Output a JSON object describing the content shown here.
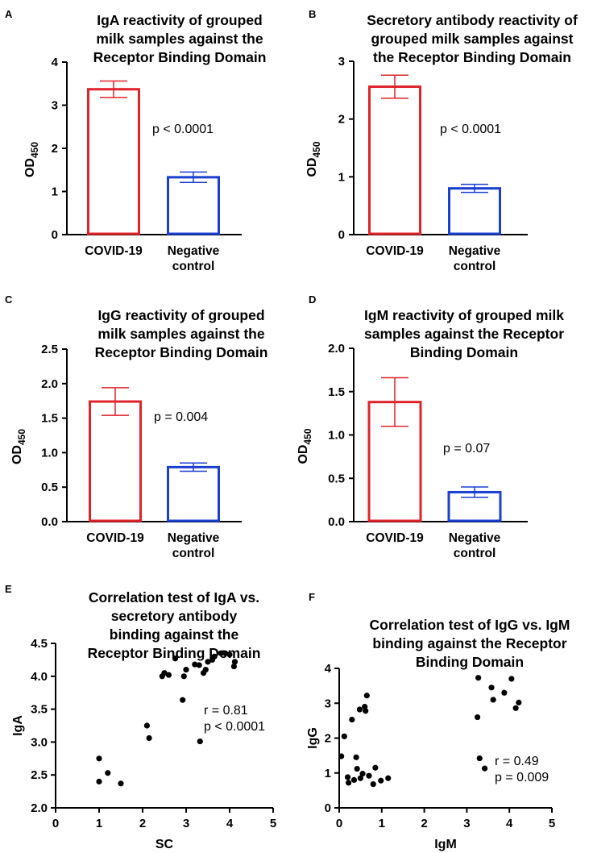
{
  "chart_data": [
    {
      "id": "A",
      "type": "bar",
      "panel_label": "A",
      "title": [
        "IgA reactivity of grouped",
        "milk samples against the",
        "Receptor Binding Domain"
      ],
      "ylabel": "OD",
      "ylabel_sub": "450",
      "ylim": [
        0,
        4
      ],
      "yticks": [
        "0",
        "1",
        "2",
        "3",
        "4"
      ],
      "categories": [
        [
          "COVID-19"
        ],
        [
          "Negative",
          "control"
        ]
      ],
      "values": [
        3.37,
        1.33
      ],
      "errors": [
        0.19,
        0.12
      ],
      "colors": [
        "#e0232a",
        "#1a3fd1"
      ],
      "annotation": "p < 0.0001"
    },
    {
      "id": "B",
      "type": "bar",
      "panel_label": "B",
      "title": [
        "Secretory antibody reactivity of",
        "grouped milk samples against",
        "the Receptor Binding Domain"
      ],
      "ylabel": "OD",
      "ylabel_sub": "450",
      "ylim": [
        0,
        3
      ],
      "yticks": [
        "0",
        "1",
        "2",
        "3"
      ],
      "categories": [
        [
          "COVID-19"
        ],
        [
          "Negative",
          "control"
        ]
      ],
      "values": [
        2.56,
        0.8
      ],
      "errors": [
        0.2,
        0.07
      ],
      "colors": [
        "#e0232a",
        "#1a3fd1"
      ],
      "annotation": "p < 0.0001"
    },
    {
      "id": "C",
      "type": "bar",
      "panel_label": "C",
      "title": [
        "IgG reactivity of grouped",
        "milk samples against the",
        "Receptor Binding Domain"
      ],
      "ylabel": "OD",
      "ylabel_sub": "450",
      "ylim": [
        0,
        2.5
      ],
      "yticks": [
        "0.0",
        "0.5",
        "1.0",
        "1.5",
        "2.0",
        "2.5"
      ],
      "categories": [
        [
          "COVID-19"
        ],
        [
          "Negative",
          "control"
        ]
      ],
      "values": [
        1.74,
        0.79
      ],
      "errors": [
        0.2,
        0.06
      ],
      "colors": [
        "#e0232a",
        "#1a3fd1"
      ],
      "annotation": "p = 0.004"
    },
    {
      "id": "D",
      "type": "bar",
      "panel_label": "D",
      "title": [
        "IgM reactivity of grouped milk",
        "samples against the Receptor",
        "Binding Domain"
      ],
      "ylabel": "OD",
      "ylabel_sub": "450",
      "ylim": [
        0,
        2.0
      ],
      "yticks": [
        "0.0",
        "0.5",
        "1.0",
        "1.5",
        "2.0"
      ],
      "categories": [
        [
          "COVID-19"
        ],
        [
          "Negative",
          "control"
        ]
      ],
      "values": [
        1.38,
        0.34
      ],
      "errors": [
        0.28,
        0.06
      ],
      "colors": [
        "#e0232a",
        "#1a3fd1"
      ],
      "annotation": "p = 0.07"
    },
    {
      "id": "E",
      "type": "scatter",
      "panel_label": "E",
      "title": [
        "Correlation test of IgA vs.",
        "secretory antibody",
        "binding against the",
        "Receptor Binding Domain"
      ],
      "xlabel": "SC",
      "ylabel": "IgA",
      "xlim": [
        0,
        5
      ],
      "ylim": [
        2.0,
        4.5
      ],
      "xticks": [
        "0",
        "1",
        "2",
        "3",
        "4",
        "5"
      ],
      "yticks": [
        "2.0",
        "2.5",
        "3.0",
        "3.5",
        "4.0",
        "4.5"
      ],
      "points": [
        [
          1.0,
          2.75
        ],
        [
          1.0,
          2.4
        ],
        [
          1.2,
          2.53
        ],
        [
          1.5,
          2.37
        ],
        [
          2.1,
          3.25
        ],
        [
          2.15,
          3.06
        ],
        [
          2.45,
          4.0
        ],
        [
          2.5,
          4.05
        ],
        [
          2.6,
          4.02
        ],
        [
          2.75,
          4.27
        ],
        [
          2.92,
          3.64
        ],
        [
          2.95,
          4.0
        ],
        [
          3.0,
          4.1
        ],
        [
          3.2,
          4.18
        ],
        [
          3.3,
          4.17
        ],
        [
          3.32,
          3.01
        ],
        [
          3.4,
          4.05
        ],
        [
          3.45,
          4.1
        ],
        [
          3.5,
          4.22
        ],
        [
          3.6,
          4.25
        ],
        [
          3.65,
          4.3
        ],
        [
          3.8,
          4.35
        ],
        [
          3.9,
          4.35
        ],
        [
          4.0,
          4.33
        ],
        [
          4.1,
          4.15
        ],
        [
          4.12,
          4.22
        ]
      ],
      "annotation": [
        "r = 0.81",
        "p < 0.0001"
      ]
    },
    {
      "id": "F",
      "type": "scatter",
      "panel_label": "F",
      "title": [
        "Correlation test of IgG vs. IgM",
        "binding against the Receptor",
        "Binding Domain"
      ],
      "xlabel": "IgM",
      "ylabel": "IgG",
      "xlim": [
        0,
        5
      ],
      "ylim": [
        0,
        4
      ],
      "xticks": [
        "0",
        "1",
        "2",
        "3",
        "4",
        "5"
      ],
      "yticks": [
        "0",
        "1",
        "2",
        "3",
        "4"
      ],
      "points": [
        [
          0.05,
          1.48
        ],
        [
          0.12,
          2.05
        ],
        [
          0.2,
          0.88
        ],
        [
          0.22,
          0.72
        ],
        [
          0.3,
          2.53
        ],
        [
          0.35,
          0.8
        ],
        [
          0.4,
          1.45
        ],
        [
          0.42,
          1.12
        ],
        [
          0.48,
          2.82
        ],
        [
          0.5,
          0.85
        ],
        [
          0.55,
          0.98
        ],
        [
          0.6,
          2.9
        ],
        [
          0.62,
          2.78
        ],
        [
          0.65,
          3.22
        ],
        [
          0.7,
          0.92
        ],
        [
          0.8,
          0.68
        ],
        [
          0.85,
          1.15
        ],
        [
          0.98,
          0.78
        ],
        [
          1.15,
          0.85
        ],
        [
          3.25,
          2.6
        ],
        [
          3.27,
          3.73
        ],
        [
          3.3,
          1.42
        ],
        [
          3.42,
          1.13
        ],
        [
          3.58,
          3.45
        ],
        [
          3.62,
          3.1
        ],
        [
          3.88,
          3.3
        ],
        [
          4.05,
          3.7
        ],
        [
          4.15,
          2.86
        ],
        [
          4.22,
          3.02
        ]
      ],
      "annotation": [
        "r = 0.49",
        "p = 0.009"
      ]
    }
  ]
}
